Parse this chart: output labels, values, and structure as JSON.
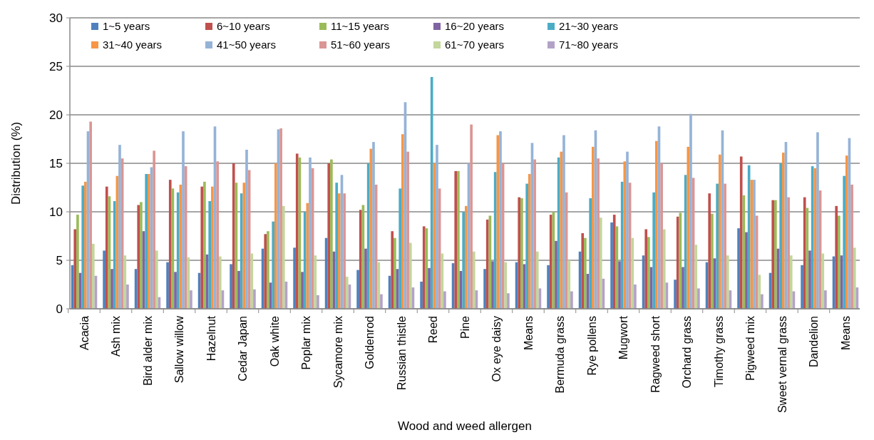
{
  "chart_data": {
    "type": "bar",
    "xlabel": "Wood and weed allergen",
    "ylabel": "Distribution (%)",
    "categories": [
      "Acacia",
      "Ash mix",
      "Bird alder mix",
      "Sallow willow",
      "Hazelnut",
      "Cedar Japan",
      "Oak white",
      "Poplar mix",
      "Sycamore mix",
      "Goldenrod",
      "Russian thistle",
      "Reed",
      "Pine",
      "Ox eye daisy",
      "Means",
      "Bermuda grass",
      "Rye pollens",
      "Mugwort",
      "Ragweed short",
      "Orchard grass",
      "Timothy grass",
      "Pigweed mix",
      "Sweet vernal grass",
      "Dandelion",
      "Means"
    ],
    "series": [
      {
        "name": "1~5 years",
        "color": "#4f81bd",
        "values": [
          4.5,
          6.0,
          4.1,
          4.8,
          3.7,
          4.6,
          6.2,
          6.3,
          7.3,
          4.0,
          3.4,
          2.8,
          4.7,
          4.1,
          4.8,
          4.5,
          5.9,
          8.9,
          5.5,
          3.0,
          4.8,
          8.3,
          3.7,
          4.5,
          5.4
        ]
      },
      {
        "name": "6~10 years",
        "color": "#c0504d",
        "values": [
          8.2,
          12.6,
          10.7,
          13.3,
          12.6,
          15.0,
          7.7,
          16.0,
          15.0,
          10.2,
          8.0,
          8.5,
          14.2,
          9.2,
          11.5,
          9.7,
          7.8,
          9.7,
          8.2,
          9.5,
          11.9,
          15.7,
          11.2,
          11.5,
          10.6
        ]
      },
      {
        "name": "11~15 years",
        "color": "#9bbb59",
        "values": [
          9.7,
          11.6,
          11.0,
          12.4,
          13.1,
          13.0,
          8.0,
          15.6,
          15.4,
          10.7,
          7.3,
          8.3,
          14.2,
          9.6,
          11.4,
          10.0,
          7.3,
          8.5,
          7.4,
          9.9,
          9.8,
          11.7,
          11.2,
          10.4,
          9.6
        ]
      },
      {
        "name": "16~20 years",
        "color": "#8064a2",
        "values": [
          3.7,
          4.1,
          8.0,
          3.8,
          5.6,
          3.9,
          2.7,
          3.8,
          5.9,
          6.2,
          4.1,
          4.2,
          3.9,
          4.9,
          4.6,
          7.0,
          3.6,
          4.9,
          4.3,
          4.3,
          5.2,
          7.9,
          6.2,
          6.0,
          5.5
        ]
      },
      {
        "name": "21~30 years",
        "color": "#4bacc6",
        "values": [
          12.7,
          11.1,
          13.9,
          12.0,
          11.1,
          11.9,
          9.0,
          10.0,
          13.0,
          15.0,
          12.4,
          23.9,
          10.0,
          14.1,
          12.9,
          15.6,
          11.4,
          13.1,
          12.0,
          13.8,
          12.9,
          14.8,
          15.0,
          14.7,
          13.7
        ]
      },
      {
        "name": "31~40 years",
        "color": "#f79646",
        "values": [
          13.1,
          13.7,
          13.9,
          12.8,
          12.6,
          13.0,
          15.0,
          10.9,
          11.9,
          16.5,
          18.0,
          15.0,
          10.6,
          17.9,
          13.9,
          16.2,
          16.7,
          15.2,
          17.3,
          16.7,
          15.9,
          13.3,
          16.1,
          14.5,
          15.8
        ]
      },
      {
        "name": "41~50 years",
        "color": "#95b3d7",
        "values": [
          18.3,
          16.9,
          14.6,
          18.3,
          18.8,
          16.4,
          18.5,
          15.6,
          13.8,
          17.2,
          21.3,
          16.9,
          15.0,
          18.3,
          17.1,
          17.9,
          18.4,
          16.2,
          18.8,
          20.1,
          18.4,
          13.3,
          17.2,
          18.2,
          17.6
        ]
      },
      {
        "name": "51~60 years",
        "color": "#da9694",
        "values": [
          19.3,
          15.5,
          16.3,
          14.7,
          15.2,
          14.3,
          18.6,
          14.5,
          11.9,
          12.8,
          16.2,
          12.4,
          19.0,
          15.0,
          15.4,
          12.0,
          15.5,
          13.0,
          15.0,
          13.5,
          12.9,
          9.6,
          11.5,
          12.2,
          12.8
        ]
      },
      {
        "name": "61~70 years",
        "color": "#c3d69b",
        "values": [
          6.7,
          5.5,
          6.0,
          5.3,
          5.4,
          5.7,
          10.6,
          5.5,
          3.3,
          4.8,
          6.8,
          5.7,
          5.9,
          4.8,
          5.9,
          5.0,
          9.4,
          7.3,
          8.2,
          6.6,
          5.5,
          3.5,
          5.5,
          5.7,
          6.3
        ]
      },
      {
        "name": "71~80 years",
        "color": "#b3a2c7",
        "values": [
          3.4,
          2.5,
          1.2,
          1.9,
          1.9,
          2.0,
          2.8,
          1.4,
          2.5,
          1.5,
          2.2,
          1.8,
          1.9,
          1.6,
          2.1,
          1.8,
          3.1,
          2.5,
          2.7,
          2.1,
          1.9,
          1.5,
          1.8,
          1.9,
          2.2
        ]
      }
    ],
    "ylim": [
      0,
      30
    ],
    "yticks": [
      0,
      5,
      10,
      15,
      20,
      25,
      30
    ],
    "grid": "y",
    "legend": "top left"
  }
}
